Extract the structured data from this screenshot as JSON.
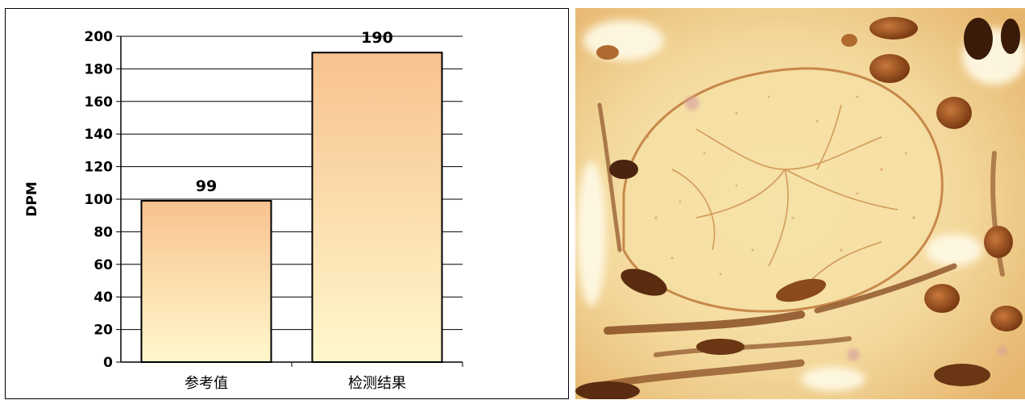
{
  "chart_data": {
    "type": "bar",
    "categories": [
      "参考值",
      "检测结果"
    ],
    "values": [
      99,
      190
    ],
    "data_labels": [
      "99",
      "190"
    ],
    "ylabel": "DPM",
    "xlabel": "",
    "title": "",
    "ylim": [
      0,
      200
    ],
    "ytick_step": 20,
    "grid": true,
    "bar_gradient": {
      "top": "#f8c28f",
      "bottom": "#fff8cc"
    }
  },
  "image_panel": {
    "description_icon": "stained-tissue-micrograph"
  }
}
